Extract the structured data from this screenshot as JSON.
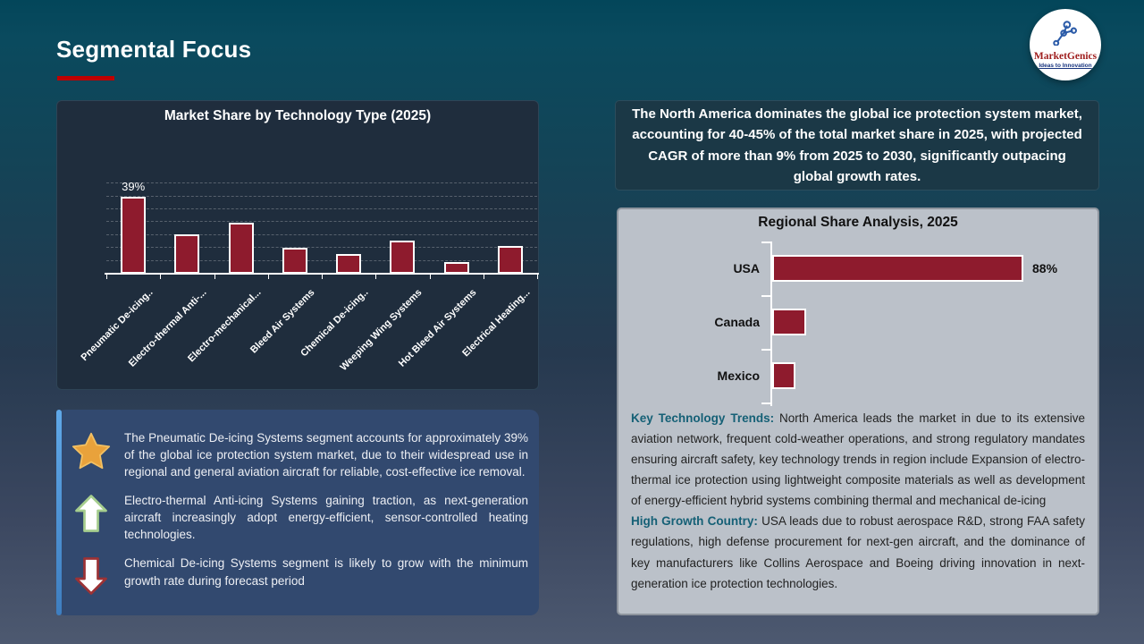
{
  "slide": {
    "title": "Segmental Focus"
  },
  "logo": {
    "name": "MarketGenics",
    "tagline": "Ideas to Innovation"
  },
  "colors": {
    "accent_red": "#C00000",
    "bar_fill": "#8E1B2D",
    "insight_box_bg": "#32496F",
    "insight_stripe": "#4B9BD8",
    "na_box_bg": "#1B3846",
    "region_panel_bg": "#BBC1C9",
    "note_lead_teal": "#156076",
    "chart_panel_bg": "#1F2D3D"
  },
  "chart_data": [
    {
      "type": "bar",
      "title": "Market Share by Technology Type (2025)",
      "categories": [
        "Pneumatic De-icing..",
        "Electro-thermal Anti-...",
        "Electro-mechanical...",
        "Bleed Air Systems",
        "Chemical De-icing..",
        "Weeping Wing Systems",
        "Hot Bleed Air Systems",
        "Electrical Heating..."
      ],
      "values": [
        39,
        20,
        26,
        13,
        10,
        17,
        6,
        14
      ],
      "data_labels": [
        "39%",
        "",
        "",
        "",
        "",
        "",
        "",
        ""
      ],
      "xlabel": "",
      "ylabel": "",
      "ylim": [
        0,
        45
      ],
      "grid": true,
      "legend": "none",
      "bar_color": "#8E1B2D"
    },
    {
      "type": "bar",
      "orientation": "horizontal",
      "title": "Regional Share Analysis, 2025",
      "categories": [
        "USA",
        "Canada",
        "Mexico"
      ],
      "values": [
        88,
        12,
        8
      ],
      "data_labels": [
        "88%",
        "",
        ""
      ],
      "xlabel": "",
      "ylabel": "",
      "xlim": [
        0,
        100
      ],
      "grid": false,
      "legend": "none",
      "bar_color": "#8E1B2D"
    }
  ],
  "na_summary": {
    "text": "The North America dominates the global ice protection system market, accounting for 40-45% of the total market share in 2025, with projected CAGR of more than 9% from 2025 to 2030, significantly outpacing global growth rates."
  },
  "insights": {
    "items": [
      {
        "icon": "star-icon",
        "text": "The Pneumatic De-icing Systems segment accounts for approximately 39% of the global ice protection system market, due to their widespread use in regional and general aviation aircraft for reliable, cost-effective ice removal."
      },
      {
        "icon": "up-arrow-icon",
        "text": "Electro-thermal Anti-icing Systems gaining traction, as next-generation aircraft increasingly adopt energy-efficient, sensor-controlled heating technologies."
      },
      {
        "icon": "down-arrow-icon",
        "text": "Chemical De-icing Systems segment is likely to grow with the minimum growth rate during forecast period"
      }
    ]
  },
  "regional_notes": {
    "items": [
      {
        "lead": "Key Technology Trends:",
        "text": " North America leads the market in due to its extensive aviation network, frequent cold-weather operations, and strong regulatory mandates ensuring aircraft safety, key technology trends in region include Expansion of electro-thermal ice protection using lightweight composite materials as well as development of energy-efficient hybrid systems combining thermal and mechanical de-icing"
      },
      {
        "lead": "High Growth Country:",
        "text": " USA leads due to robust aerospace R&D, strong FAA safety regulations, high defense procurement for next-gen aircraft, and the dominance of key manufacturers like Collins Aerospace and Boeing driving innovation in next-generation ice protection technologies."
      }
    ]
  }
}
